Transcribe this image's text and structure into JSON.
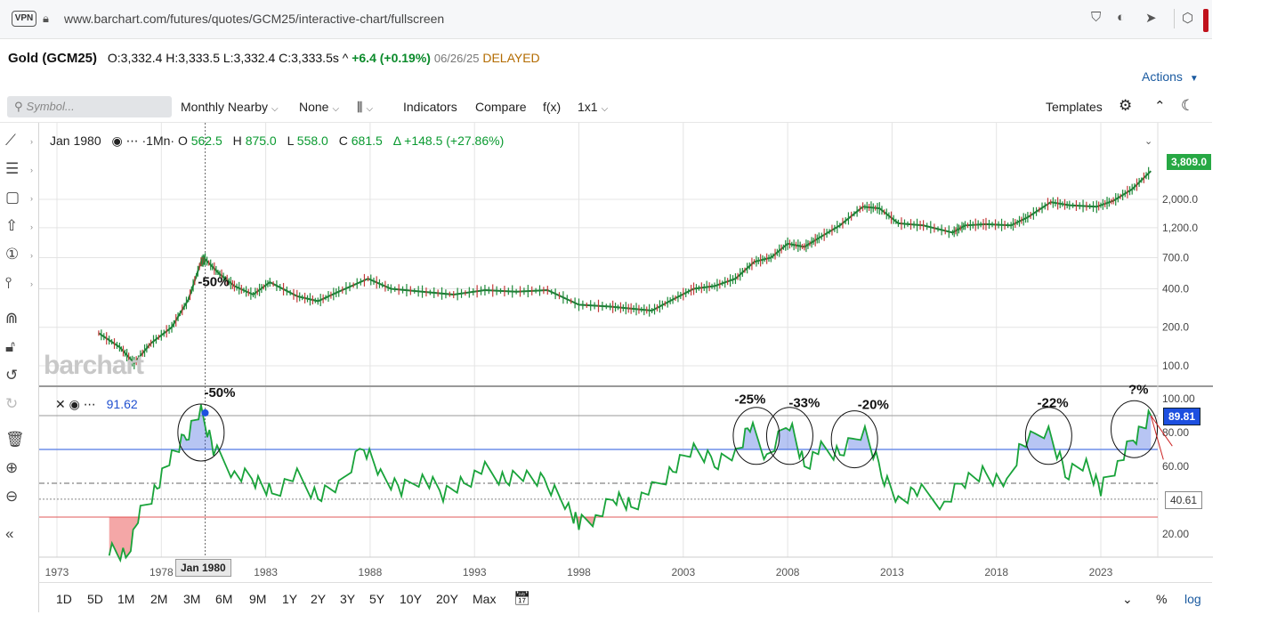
{
  "browser": {
    "vpn_label": "VPN",
    "url": "www.barchart.com/futures/quotes/GCM25/interactive-chart/fullscreen"
  },
  "quote": {
    "name": "Gold (GCM25)",
    "ohlc": "O:3,332.4 H:3,333.5 L:3,332.4 C:3,333.5s ^",
    "change": "+6.4 (+0.19%)",
    "date": "06/26/25",
    "status": "DELAYED"
  },
  "actions_label": "Actions",
  "toolbar": {
    "search_placeholder": "Symbol...",
    "period": "Monthly Nearby",
    "overlay": "None",
    "indicators": "Indicators",
    "compare": "Compare",
    "fx": "f(x)",
    "layout": "1x1",
    "templates": "Templates"
  },
  "legend": {
    "date": "Jan 1980",
    "interval": "·1Mn·",
    "o_label": "O",
    "o": "562.5",
    "h_label": "H",
    "h": "875.0",
    "l_label": "L",
    "l": "558.0",
    "c_label": "C",
    "c": "681.5",
    "delta": "Δ +148.5 (+27.86%)"
  },
  "sublegend": {
    "value": "91.62"
  },
  "watermark": "barchart",
  "price_tag": "3,809.0",
  "osc_tag": "89.81",
  "level_tag": "40.61",
  "date_tag": "Jan 1980",
  "chart_data": {
    "type": "line",
    "price_axis": {
      "scale": "log",
      "ticks": [
        "100.0",
        "200.0",
        "400.0",
        "700.0",
        "1,200.0",
        "2,000.0"
      ]
    },
    "osc_axis": {
      "ticks": [
        "100.00",
        "80.00",
        "60.00",
        "20.00"
      ]
    },
    "x_ticks": [
      "1973",
      "1978",
      "1983",
      "1988",
      "1993",
      "1998",
      "2003",
      "2008",
      "2013",
      "2018",
      "2023"
    ],
    "price_series": {
      "x": [
        1975.0,
        1976.0,
        1976.7,
        1977.5,
        1978.5,
        1979.3,
        1979.9,
        1980.1,
        1980.8,
        1981.5,
        1982.4,
        1983.2,
        1984.5,
        1985.5,
        1986.5,
        1987.9,
        1989.0,
        1990.5,
        1992.0,
        1993.5,
        1995.0,
        1996.5,
        1998.0,
        1999.5,
        2000.5,
        2001.5,
        2002.5,
        2003.5,
        2004.5,
        2005.5,
        2006.4,
        2007.2,
        2008.0,
        2008.8,
        2009.5,
        2010.5,
        2011.6,
        2012.4,
        2013.3,
        2014.5,
        2015.9,
        2016.5,
        2017.5,
        2018.7,
        2019.5,
        2020.6,
        2021.5,
        2022.8,
        2023.6,
        2024.5,
        2025.4
      ],
      "y": [
        180,
        140,
        105,
        150,
        200,
        330,
        650,
        680,
        520,
        420,
        360,
        450,
        350,
        320,
        380,
        480,
        400,
        380,
        360,
        390,
        380,
        390,
        300,
        290,
        280,
        270,
        330,
        400,
        420,
        480,
        650,
        700,
        900,
        850,
        1000,
        1250,
        1750,
        1700,
        1300,
        1250,
        1100,
        1250,
        1280,
        1250,
        1450,
        1900,
        1800,
        1750,
        1950,
        2400,
        3330
      ]
    },
    "oscillator": {
      "x": [
        1975.5,
        1976.3,
        1977.0,
        1977.8,
        1978.5,
        1979.2,
        1979.9,
        1980.5,
        1981.5,
        1982.5,
        1983.3,
        1984.5,
        1985.5,
        1986.5,
        1987.7,
        1988.5,
        1989.5,
        1990.5,
        1991.5,
        1992.5,
        1993.5,
        1994.5,
        1995.5,
        1996.5,
        1997.5,
        1998.0,
        1998.8,
        1999.8,
        2000.5,
        2001.5,
        2002.5,
        2003.5,
        2004.5,
        2005.5,
        2006.2,
        2007.0,
        2008.1,
        2008.8,
        2009.6,
        2010.5,
        2011.7,
        2012.5,
        2013.3,
        2014.2,
        2015.5,
        2016.5,
        2017.5,
        2018.5,
        2019.2,
        2020.5,
        2021.3,
        2022.3,
        2023.0,
        2023.8,
        2024.7,
        2025.4
      ],
      "y": [
        12,
        6,
        32,
        48,
        66,
        78,
        94,
        70,
        56,
        52,
        44,
        54,
        42,
        48,
        72,
        56,
        46,
        54,
        44,
        50,
        58,
        52,
        54,
        50,
        36,
        26,
        30,
        42,
        36,
        46,
        58,
        70,
        62,
        68,
        84,
        66,
        86,
        60,
        70,
        68,
        80,
        56,
        40,
        46,
        38,
        52,
        56,
        48,
        74,
        80,
        56,
        62,
        46,
        62,
        78,
        90
      ]
    },
    "ref_lines": [
      {
        "value": 90,
        "color": "#999999"
      },
      {
        "value": 70,
        "color": "#6f8fe8"
      },
      {
        "value": 50,
        "color": "#666666"
      },
      {
        "value": 40.61,
        "color": "#888888"
      },
      {
        "value": 30,
        "color": "#e05a5a"
      }
    ],
    "annotations": [
      {
        "text": "-50%",
        "x": 1980.5,
        "price": 420
      },
      {
        "text": "-50%",
        "x": 1980.8,
        "osc": 101
      },
      {
        "text": "-25%",
        "x": 2006.2,
        "osc": 97
      },
      {
        "text": "-33%",
        "x": 2008.8,
        "osc": 95
      },
      {
        "text": "-20%",
        "x": 2012.1,
        "osc": 94
      },
      {
        "text": "-22%",
        "x": 2020.7,
        "osc": 95
      },
      {
        "text": "?%",
        "x": 2024.8,
        "osc": 103
      }
    ],
    "circles": [
      {
        "x": 1979.9,
        "osc": 80
      },
      {
        "x": 2006.5,
        "osc": 78
      },
      {
        "x": 2008.1,
        "osc": 78
      },
      {
        "x": 2011.2,
        "osc": 76
      },
      {
        "x": 2020.5,
        "osc": 78
      },
      {
        "x": 2024.6,
        "osc": 82
      }
    ]
  },
  "ranges": [
    "1D",
    "5D",
    "1M",
    "2M",
    "3M",
    "6M",
    "9M",
    "1Y",
    "2Y",
    "3Y",
    "5Y",
    "10Y",
    "20Y",
    "Max"
  ],
  "percent_label": "%",
  "log_label": "log"
}
